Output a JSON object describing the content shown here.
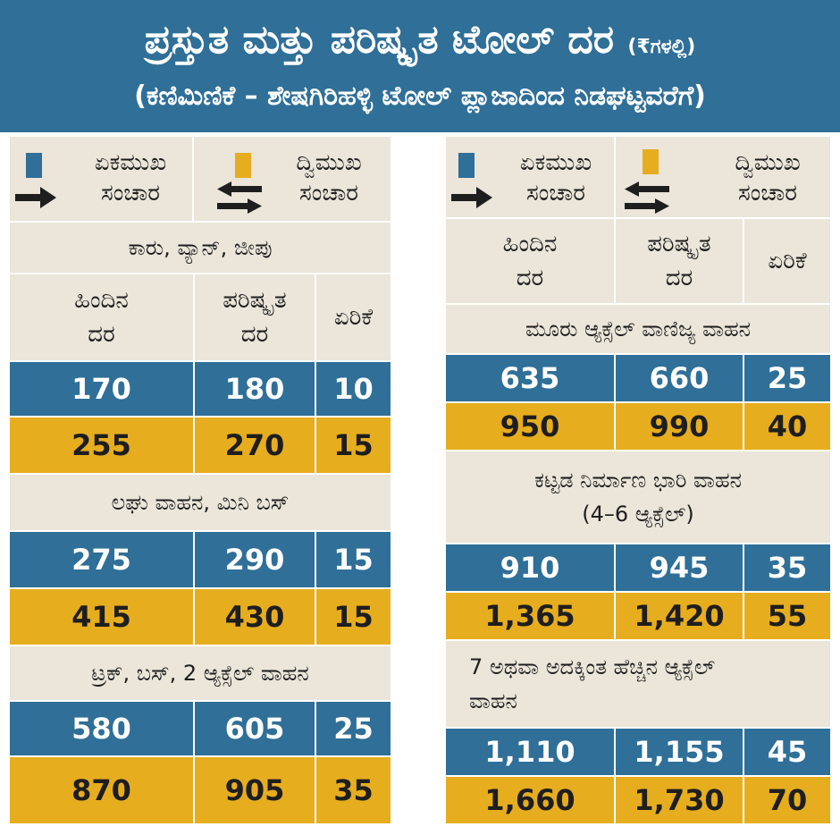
{
  "header": {
    "title": "ಪ್ರಸ್ತುತ ಮತ್ತು ಪರಿಷ್ಕೃತ ಟೋಲ್ ದರ",
    "unit": "(₹ಗಳಲ್ಲಿ)",
    "subtitle": "(ಕಣಿಮಿಣಿಕೆ – ಶೇಷಗಿರಿಹಳ್ಳಿ ಟೋಲ್ ಪ್ಲಾಜಾದಿಂದ ನಿಡಘಟ್ಟವರೆಗೆ)"
  },
  "legend": {
    "one_way_line1": "ಏಕಮುಖ",
    "one_way_line2": "ಸಂಚಾರ",
    "two_way_line1": "ದ್ವಿಮುಖ",
    "two_way_line2": "ಸಂಚಾರ",
    "one_way_color": "#2f6f98",
    "two_way_color": "#e6ad1f"
  },
  "columns": {
    "old_line1": "ಹಿಂದಿನ",
    "old_line2": "ದರ",
    "new_line1": "ಪರಿಷ್ಕೃತ",
    "new_line2": "ದರ",
    "increase": "ಏರಿಕೆ"
  },
  "left": {
    "sections": [
      {
        "title": "ಕಾರು, ವ್ಯಾನ್, ಜೀಪು",
        "one_way": [
          "170",
          "180",
          "10"
        ],
        "two_way": [
          "255",
          "270",
          "15"
        ]
      },
      {
        "title": "ಲಘು ವಾಹನ, ಮಿನಿ ಬಸ್",
        "one_way": [
          "275",
          "290",
          "15"
        ],
        "two_way": [
          "415",
          "430",
          "15"
        ]
      },
      {
        "title": "ಟ್ರಕ್, ಬಸ್, 2 ಆ್ಯಕ್ಸೆಲ್ ವಾಹನ",
        "one_way": [
          "580",
          "605",
          "25"
        ],
        "two_way": [
          "870",
          "905",
          "35"
        ]
      }
    ]
  },
  "right": {
    "sections": [
      {
        "title": "ಮೂರು ಆ್ಯಕ್ಸೆಲ್ ವಾಣಿಜ್ಯ ವಾಹನ",
        "one_way": [
          "635",
          "660",
          "25"
        ],
        "two_way": [
          "950",
          "990",
          "40"
        ]
      },
      {
        "title": "ಕಟ್ಟಡ ನಿರ್ಮಾಣ ಭಾರಿ ವಾಹನ",
        "title_line2": "(4–6 ಆ್ಯಕ್ಸೆಲ್)",
        "one_way": [
          "910",
          "945",
          "35"
        ],
        "two_way": [
          "1,365",
          "1,420",
          "55"
        ]
      },
      {
        "title": "7 ಅಥವಾ ಅದಕ್ಕಿಂತ ಹೆಚ್ಚಿನ ಆ್ಯಕ್ಸೆಲ್",
        "title_line2": "ವಾಹನ",
        "one_way": [
          "1,110",
          "1,155",
          "45"
        ],
        "two_way": [
          "1,660",
          "1,730",
          "70"
        ]
      }
    ]
  }
}
